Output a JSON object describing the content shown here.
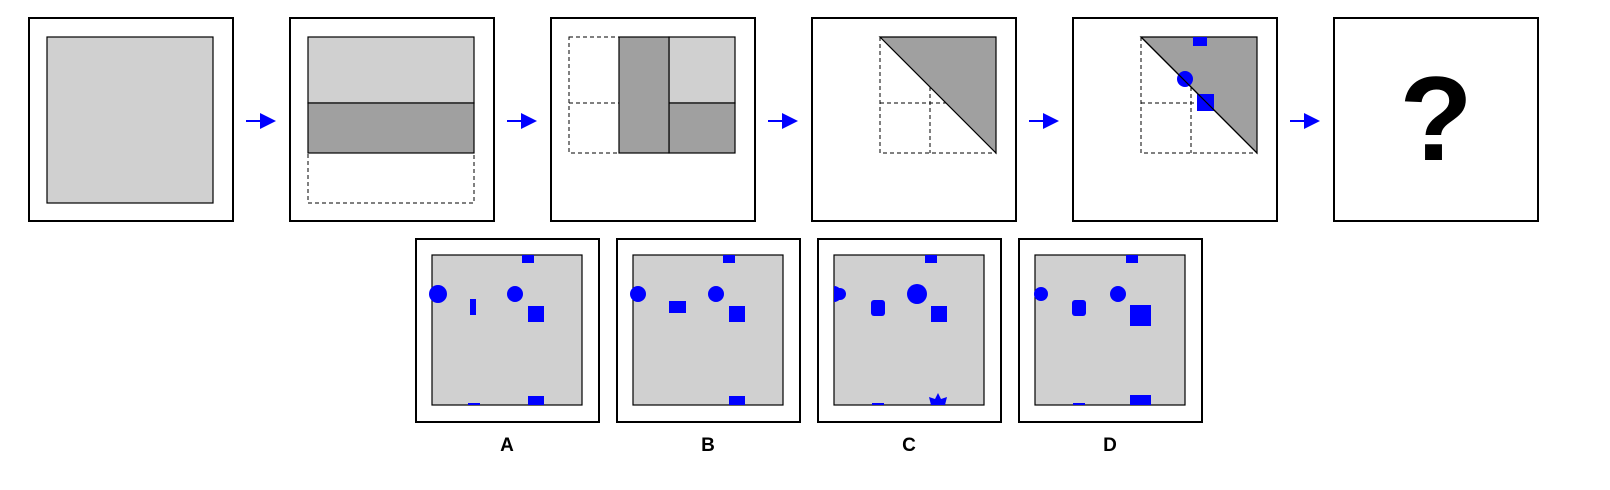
{
  "sequence": {
    "question_mark": "?"
  },
  "options": [
    {
      "label": "A"
    },
    {
      "label": "B"
    },
    {
      "label": "C"
    },
    {
      "label": "D"
    }
  ],
  "colors": {
    "paper": "#d0d0d0",
    "fold": "#a0a0a0",
    "hole": "#0000ff",
    "arrow": "#0000ff",
    "outline": "#000000"
  }
}
